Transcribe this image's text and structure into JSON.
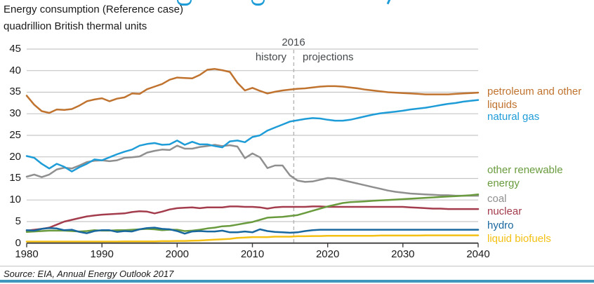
{
  "header": {
    "title_line1": "Energy consumption (Reference case)",
    "title_line2": "quadrillion British thermal units"
  },
  "divider": {
    "year_label": "2016",
    "history_label": "history",
    "projections_label": "projections"
  },
  "footer": {
    "source": "Source: EIA, Annual Energy Outlook 2017"
  },
  "colors": {
    "petroleum": "#c0732f",
    "natural_gas": "#1e9cd7",
    "coal": "#8f8f8f",
    "nuclear": "#a33c4c",
    "other_renewables": "#699b3e",
    "hydro": "#19679f",
    "liquid_biofuels": "#f3c013",
    "grid": "#c6c6c6",
    "axis": "#3d3d3d",
    "divider_line": "#b4b4b4",
    "accent_bar": "#3f97bd"
  },
  "legend": {
    "items": [
      {
        "label": "petroleum and other liquids",
        "color": "#c0732f"
      },
      {
        "label": "natural gas",
        "color": "#1e9cd7"
      },
      {
        "label": "other renewable energy",
        "color": "#699b3e"
      },
      {
        "label": "coal",
        "color": "#8f8f8f"
      },
      {
        "label": "nuclear",
        "color": "#a33c4c"
      },
      {
        "label": "hydro",
        "color": "#19679f"
      },
      {
        "label": "liquid biofuels",
        "color": "#f3c013"
      }
    ]
  },
  "chart_data": {
    "type": "line",
    "title": "Energy consumption (Reference case)",
    "ylabel": "quadrillion British thermal units",
    "xlabel": "",
    "xlim": [
      1980,
      2040
    ],
    "ylim": [
      0,
      45
    ],
    "x_ticks": [
      1980,
      1990,
      2000,
      2010,
      2020,
      2030,
      2040
    ],
    "y_ticks": [
      0,
      5,
      10,
      15,
      20,
      25,
      30,
      35,
      40,
      45
    ],
    "grid": "horizontal",
    "legend_position": "right",
    "history_projection_divider_label": "2016",
    "divider_draw_year": 2015.5,
    "x": [
      1980,
      1981,
      1982,
      1983,
      1984,
      1985,
      1986,
      1987,
      1988,
      1989,
      1990,
      1991,
      1992,
      1993,
      1994,
      1995,
      1996,
      1997,
      1998,
      1999,
      2000,
      2001,
      2002,
      2003,
      2004,
      2005,
      2006,
      2007,
      2008,
      2009,
      2010,
      2011,
      2012,
      2013,
      2014,
      2015,
      2016,
      2017,
      2018,
      2019,
      2020,
      2021,
      2022,
      2023,
      2024,
      2025,
      2026,
      2027,
      2028,
      2029,
      2030,
      2031,
      2032,
      2033,
      2034,
      2035,
      2036,
      2037,
      2038,
      2039,
      2040
    ],
    "series": [
      {
        "name": "coal",
        "color": "#8f8f8f",
        "values": [
          15.4,
          15.9,
          15.3,
          15.9,
          17.1,
          17.5,
          17.3,
          18.0,
          18.8,
          19.1,
          19.2,
          19.0,
          19.2,
          19.8,
          19.9,
          20.1,
          21.0,
          21.4,
          21.7,
          21.6,
          22.6,
          21.9,
          21.9,
          22.3,
          22.5,
          22.8,
          22.5,
          22.7,
          22.4,
          19.7,
          20.8,
          19.9,
          17.4,
          18.0,
          18.0,
          15.7,
          14.5,
          14.2,
          14.3,
          14.7,
          15.1,
          15.0,
          14.6,
          14.2,
          13.8,
          13.4,
          13.0,
          12.6,
          12.2,
          11.9,
          11.7,
          11.5,
          11.4,
          11.3,
          11.2,
          11.1,
          11.1,
          11.0,
          11.0,
          11.0,
          11.0
        ]
      },
      {
        "name": "petroleum and other liquids",
        "color": "#c0732f",
        "values": [
          34.2,
          32.1,
          30.6,
          30.2,
          31.0,
          30.9,
          31.1,
          31.9,
          32.9,
          33.3,
          33.6,
          32.9,
          33.5,
          33.8,
          34.7,
          34.6,
          35.7,
          36.3,
          36.9,
          37.9,
          38.4,
          38.3,
          38.2,
          39.0,
          40.2,
          40.4,
          40.1,
          39.7,
          37.2,
          35.4,
          36.0,
          35.3,
          34.7,
          35.1,
          35.4,
          35.6,
          35.8,
          35.9,
          36.1,
          36.3,
          36.4,
          36.4,
          36.3,
          36.1,
          35.9,
          35.6,
          35.4,
          35.2,
          35.0,
          34.9,
          34.8,
          34.7,
          34.6,
          34.5,
          34.5,
          34.5,
          34.5,
          34.6,
          34.7,
          34.8,
          34.9
        ]
      },
      {
        "name": "natural gas",
        "color": "#1e9cd7",
        "values": [
          20.2,
          19.8,
          18.4,
          17.3,
          18.4,
          17.7,
          16.6,
          17.6,
          18.4,
          19.4,
          19.2,
          19.9,
          20.6,
          21.2,
          21.7,
          22.6,
          23.0,
          23.2,
          22.8,
          22.9,
          23.8,
          22.8,
          23.5,
          22.9,
          22.9,
          22.5,
          22.2,
          23.6,
          23.8,
          23.4,
          24.6,
          25.0,
          26.1,
          26.8,
          27.5,
          28.2,
          28.5,
          28.8,
          29.0,
          28.9,
          28.6,
          28.4,
          28.4,
          28.6,
          29.0,
          29.4,
          29.8,
          30.1,
          30.3,
          30.5,
          30.7,
          31.0,
          31.2,
          31.4,
          31.7,
          32.0,
          32.3,
          32.5,
          32.8,
          33.0,
          33.2
        ]
      },
      {
        "name": "nuclear",
        "color": "#a33c4c",
        "values": [
          2.9,
          3.1,
          3.3,
          3.6,
          4.3,
          5.0,
          5.4,
          5.8,
          6.2,
          6.4,
          6.6,
          6.7,
          6.8,
          6.9,
          7.2,
          7.4,
          7.3,
          6.9,
          7.3,
          7.8,
          8.1,
          8.2,
          8.3,
          8.1,
          8.3,
          8.3,
          8.3,
          8.5,
          8.5,
          8.4,
          8.4,
          8.3,
          8.0,
          8.3,
          8.4,
          8.4,
          8.4,
          8.4,
          8.5,
          8.5,
          8.4,
          8.4,
          8.4,
          8.4,
          8.4,
          8.4,
          8.4,
          8.4,
          8.4,
          8.4,
          8.4,
          8.3,
          8.2,
          8.1,
          8.0,
          8.0,
          7.9,
          7.9,
          7.9,
          7.9,
          7.9
        ]
      },
      {
        "name": "other renewable energy",
        "color": "#699b3e",
        "values": [
          2.6,
          2.7,
          2.8,
          2.9,
          2.9,
          2.9,
          2.8,
          2.7,
          2.8,
          3.0,
          2.9,
          2.9,
          3.0,
          3.0,
          3.1,
          3.2,
          3.3,
          3.2,
          3.0,
          3.1,
          3.1,
          2.8,
          2.9,
          3.1,
          3.4,
          3.6,
          3.9,
          4.0,
          4.3,
          4.6,
          4.9,
          5.4,
          5.9,
          6.0,
          6.1,
          6.3,
          6.5,
          7.0,
          7.5,
          8.0,
          8.5,
          8.9,
          9.3,
          9.5,
          9.6,
          9.7,
          9.8,
          9.9,
          10.0,
          10.1,
          10.2,
          10.3,
          10.4,
          10.5,
          10.6,
          10.7,
          10.8,
          10.9,
          11.0,
          11.1,
          11.3
        ]
      },
      {
        "name": "hydro",
        "color": "#19679f",
        "values": [
          3.0,
          2.9,
          3.3,
          3.5,
          3.4,
          3.0,
          3.1,
          2.6,
          2.3,
          2.8,
          3.0,
          3.0,
          2.6,
          2.8,
          2.7,
          3.2,
          3.5,
          3.6,
          3.3,
          3.2,
          2.8,
          2.2,
          2.7,
          2.8,
          2.7,
          2.7,
          2.9,
          2.5,
          2.5,
          2.7,
          2.5,
          3.2,
          2.8,
          2.6,
          2.5,
          2.4,
          2.5,
          2.8,
          3.0,
          3.1,
          3.1,
          3.1,
          3.1,
          3.1,
          3.1,
          3.1,
          3.1,
          3.1,
          3.1,
          3.1,
          3.1,
          3.1,
          3.1,
          3.1,
          3.1,
          3.1,
          3.1,
          3.1,
          3.1,
          3.1,
          3.1
        ]
      },
      {
        "name": "liquid biofuels",
        "color": "#f3c013",
        "values": [
          0.35,
          0.35,
          0.35,
          0.35,
          0.35,
          0.35,
          0.35,
          0.35,
          0.35,
          0.35,
          0.35,
          0.35,
          0.35,
          0.4,
          0.4,
          0.4,
          0.4,
          0.4,
          0.45,
          0.45,
          0.5,
          0.5,
          0.55,
          0.6,
          0.7,
          0.8,
          0.9,
          1.0,
          1.2,
          1.3,
          1.4,
          1.4,
          1.4,
          1.5,
          1.5,
          1.5,
          1.6,
          1.6,
          1.65,
          1.65,
          1.7,
          1.7,
          1.7,
          1.7,
          1.7,
          1.7,
          1.7,
          1.75,
          1.75,
          1.75,
          1.75,
          1.75,
          1.75,
          1.8,
          1.8,
          1.8,
          1.8,
          1.8,
          1.8,
          1.8,
          1.8
        ]
      }
    ]
  }
}
